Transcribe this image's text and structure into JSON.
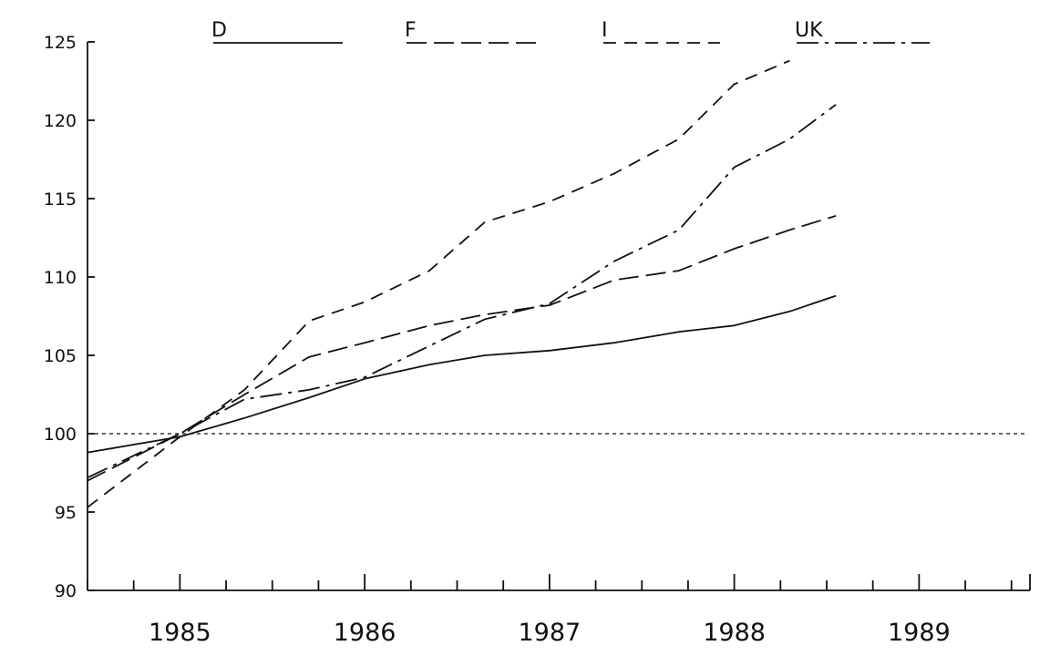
{
  "chart_data": {
    "type": "line",
    "title": "",
    "xlabel": "",
    "ylabel": "",
    "ylim": [
      90,
      125
    ],
    "yticks": [
      "90",
      "95",
      "100",
      "105",
      "110",
      "115",
      "120",
      "125"
    ],
    "xlim": [
      1984.5,
      1989.6
    ],
    "year_labels": [
      "1985",
      "1986",
      "1987",
      "1988",
      "1989"
    ],
    "reference_value": 100,
    "legend_position": "top",
    "series": [
      {
        "name": "D",
        "style": "solid",
        "x": [
          1984.5,
          1985.0,
          1985.35,
          1985.7,
          1986.0,
          1986.35,
          1986.65,
          1987.0,
          1987.35,
          1987.7,
          1988.0,
          1988.3,
          1988.55
        ],
        "values": [
          98.8,
          99.8,
          101.0,
          102.3,
          103.5,
          104.4,
          105.0,
          105.3,
          105.8,
          106.5,
          106.9,
          107.8,
          108.8
        ]
      },
      {
        "name": "F",
        "style": "long-dash",
        "x": [
          1984.5,
          1985.0,
          1985.35,
          1985.7,
          1986.0,
          1986.35,
          1986.65,
          1987.0,
          1987.35,
          1987.7,
          1988.0,
          1988.3,
          1988.55
        ],
        "values": [
          97.0,
          100.0,
          102.5,
          104.9,
          105.8,
          106.9,
          107.6,
          108.2,
          109.8,
          110.4,
          111.8,
          113.0,
          113.9
        ]
      },
      {
        "name": "I",
        "style": "short-dash",
        "x": [
          1984.5,
          1985.0,
          1985.35,
          1985.7,
          1986.0,
          1986.35,
          1986.65,
          1987.0,
          1987.35,
          1987.7,
          1988.0,
          1988.3
        ],
        "values": [
          95.3,
          99.8,
          102.8,
          107.2,
          108.4,
          110.4,
          113.5,
          114.8,
          116.6,
          118.8,
          122.3,
          123.8
        ]
      },
      {
        "name": "UK",
        "style": "dash-dot",
        "x": [
          1984.5,
          1985.0,
          1985.35,
          1985.7,
          1986.0,
          1986.35,
          1986.65,
          1987.0,
          1987.35,
          1987.7,
          1988.0,
          1988.3,
          1988.55
        ],
        "values": [
          97.2,
          100.0,
          102.2,
          102.8,
          103.6,
          105.6,
          107.3,
          108.3,
          111.0,
          113.0,
          117.0,
          118.8,
          121.0
        ]
      }
    ]
  }
}
